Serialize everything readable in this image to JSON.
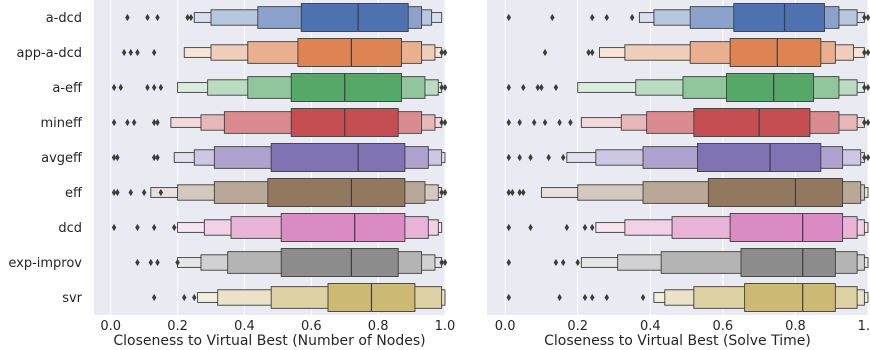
{
  "chart_data": [
    {
      "type": "boxen",
      "xlabel": "Closeness to Virtual Best (Number of Nodes)",
      "ylabel": "",
      "xlim": [
        -0.05,
        1.0
      ],
      "x_ticks": [
        "0.0",
        "0.2",
        "0.4",
        "0.6",
        "0.8",
        "1.0"
      ],
      "x_tick_values": [
        0.0,
        0.2,
        0.4,
        0.6,
        0.8,
        1.0
      ],
      "categories": [
        "a-dcd",
        "app-a-dcd",
        "a-eff",
        "mineff",
        "avgeff",
        "eff",
        "dcd",
        "exp-improv",
        "svr"
      ],
      "grid": true,
      "series": [
        {
          "name": "a-dcd",
          "color": "#4c72b0",
          "median": 0.74,
          "levels": [
            [
              0.57,
              0.89
            ],
            [
              0.44,
              0.93
            ],
            [
              0.3,
              0.96
            ],
            [
              0.25,
              0.99
            ]
          ],
          "outliers": [
            0.05,
            0.11,
            0.14,
            0.23,
            0.24
          ]
        },
        {
          "name": "app-a-dcd",
          "color": "#dd8452",
          "median": 0.72,
          "levels": [
            [
              0.56,
              0.87
            ],
            [
              0.41,
              0.93
            ],
            [
              0.3,
              0.97
            ],
            [
              0.22,
              0.99
            ]
          ],
          "outliers": [
            0.04,
            0.06,
            0.08,
            0.13,
            0.99,
            1.0
          ]
        },
        {
          "name": "a-eff",
          "color": "#55a868",
          "median": 0.7,
          "levels": [
            [
              0.54,
              0.87
            ],
            [
              0.41,
              0.94
            ],
            [
              0.29,
              0.98
            ],
            [
              0.2,
              0.99
            ]
          ],
          "outliers": [
            0.01,
            0.03,
            0.11,
            0.13,
            0.15,
            0.99,
            1.0
          ]
        },
        {
          "name": "mineff",
          "color": "#c44e52",
          "median": 0.7,
          "levels": [
            [
              0.54,
              0.86
            ],
            [
              0.34,
              0.93
            ],
            [
              0.27,
              0.97
            ],
            [
              0.18,
              0.99
            ]
          ],
          "outliers": [
            0.01,
            0.05,
            0.07,
            0.13,
            0.14,
            0.99,
            1.0
          ]
        },
        {
          "name": "avgeff",
          "color": "#8172b3",
          "median": 0.74,
          "levels": [
            [
              0.48,
              0.88
            ],
            [
              0.31,
              0.95
            ],
            [
              0.25,
              0.99
            ],
            [
              0.19,
              1.0
            ]
          ],
          "outliers": [
            0.01,
            0.02,
            0.13,
            0.14
          ]
        },
        {
          "name": "eff",
          "color": "#937860",
          "median": 0.72,
          "levels": [
            [
              0.47,
              0.88
            ],
            [
              0.31,
              0.94
            ],
            [
              0.2,
              0.98
            ],
            [
              0.12,
              0.99
            ]
          ],
          "outliers": [
            0.01,
            0.02,
            0.06,
            0.1,
            0.15,
            0.99,
            1.0
          ]
        },
        {
          "name": "dcd",
          "color": "#da8bc3",
          "median": 0.73,
          "levels": [
            [
              0.51,
              0.88
            ],
            [
              0.36,
              0.95
            ],
            [
              0.28,
              0.98
            ],
            [
              0.2,
              0.99
            ]
          ],
          "outliers": [
            0.01,
            0.08,
            0.13,
            0.19
          ]
        },
        {
          "name": "exp-improv",
          "color": "#8c8c8c",
          "median": 0.72,
          "levels": [
            [
              0.51,
              0.86
            ],
            [
              0.35,
              0.93
            ],
            [
              0.27,
              0.97
            ],
            [
              0.2,
              0.99
            ]
          ],
          "outliers": [
            0.08,
            0.12,
            0.14,
            0.2,
            0.99,
            1.0
          ]
        },
        {
          "name": "svr",
          "color": "#ccb974",
          "median": 0.78,
          "levels": [
            [
              0.65,
              0.91
            ],
            [
              0.48,
              0.99
            ],
            [
              0.32,
              1.0
            ],
            [
              0.26,
              1.0
            ]
          ],
          "outliers": [
            0.13,
            0.22,
            0.25
          ]
        }
      ]
    },
    {
      "type": "boxen",
      "xlabel": "Closeness to Virtual Best (Solve Time)",
      "ylabel": "",
      "xlim": [
        -0.05,
        1.0
      ],
      "x_ticks": [
        "0.0",
        "0.2",
        "0.4",
        "0.6",
        "0.8",
        "1.0"
      ],
      "x_tick_values": [
        0.0,
        0.2,
        0.4,
        0.6,
        0.8,
        1.0
      ],
      "categories": [
        "a-dcd",
        "app-a-dcd",
        "a-eff",
        "mineff",
        "avgeff",
        "eff",
        "dcd",
        "exp-improv",
        "svr"
      ],
      "grid": true,
      "series": [
        {
          "name": "a-dcd",
          "color": "#4c72b0",
          "median": 0.77,
          "levels": [
            [
              0.63,
              0.88
            ],
            [
              0.51,
              0.92
            ],
            [
              0.41,
              0.97
            ],
            [
              0.37,
              0.99
            ]
          ],
          "outliers": [
            0.01,
            0.13,
            0.24,
            0.28,
            0.35,
            0.99,
            1.0
          ]
        },
        {
          "name": "app-a-dcd",
          "color": "#dd8452",
          "median": 0.75,
          "levels": [
            [
              0.62,
              0.87
            ],
            [
              0.51,
              0.91
            ],
            [
              0.33,
              0.96
            ],
            [
              0.26,
              0.99
            ]
          ],
          "outliers": [
            0.11,
            0.23,
            0.24,
            0.99,
            1.0
          ]
        },
        {
          "name": "a-eff",
          "color": "#55a868",
          "median": 0.74,
          "levels": [
            [
              0.61,
              0.85
            ],
            [
              0.49,
              0.92
            ],
            [
              0.36,
              0.97
            ],
            [
              0.2,
              0.99
            ]
          ],
          "outliers": [
            0.01,
            0.05,
            0.09,
            0.1,
            0.14,
            0.99,
            1.0
          ]
        },
        {
          "name": "mineff",
          "color": "#c44e52",
          "median": 0.7,
          "levels": [
            [
              0.52,
              0.84
            ],
            [
              0.39,
              0.92
            ],
            [
              0.32,
              0.97
            ],
            [
              0.21,
              0.99
            ]
          ],
          "outliers": [
            0.01,
            0.04,
            0.08,
            0.11,
            0.15,
            0.18,
            0.99,
            1.0
          ]
        },
        {
          "name": "avgeff",
          "color": "#8172b3",
          "median": 0.73,
          "levels": [
            [
              0.53,
              0.87
            ],
            [
              0.38,
              0.93
            ],
            [
              0.25,
              0.98
            ],
            [
              0.17,
              0.99
            ]
          ],
          "outliers": [
            0.01,
            0.04,
            0.07,
            0.12,
            0.16,
            0.99,
            1.0
          ]
        },
        {
          "name": "eff",
          "color": "#937860",
          "median": 0.8,
          "levels": [
            [
              0.56,
              0.93
            ],
            [
              0.38,
              0.98
            ],
            [
              0.2,
              0.99
            ],
            [
              0.1,
              1.0
            ]
          ],
          "outliers": [
            0.01,
            0.02,
            0.04,
            0.05
          ]
        },
        {
          "name": "dcd",
          "color": "#da8bc3",
          "median": 0.82,
          "levels": [
            [
              0.62,
              0.93
            ],
            [
              0.46,
              0.97
            ],
            [
              0.33,
              0.99
            ],
            [
              0.25,
              1.0
            ]
          ],
          "outliers": [
            0.01,
            0.07,
            0.17,
            0.22,
            0.24
          ]
        },
        {
          "name": "exp-improv",
          "color": "#8c8c8c",
          "median": 0.82,
          "levels": [
            [
              0.65,
              0.91
            ],
            [
              0.43,
              0.97
            ],
            [
              0.31,
              0.99
            ],
            [
              0.21,
              1.0
            ]
          ],
          "outliers": [
            0.01,
            0.14,
            0.16,
            0.2
          ]
        },
        {
          "name": "svr",
          "color": "#ccb974",
          "median": 0.82,
          "levels": [
            [
              0.66,
              0.91
            ],
            [
              0.52,
              0.97
            ],
            [
              0.44,
              0.99
            ],
            [
              0.41,
              1.0
            ]
          ],
          "outliers": [
            0.01,
            0.15,
            0.22,
            0.24,
            0.28,
            0.38
          ]
        }
      ]
    }
  ]
}
